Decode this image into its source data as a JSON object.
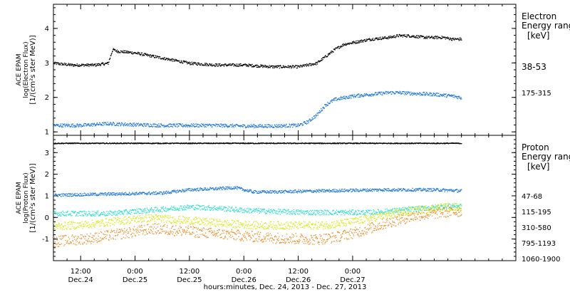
{
  "chart_data": [
    {
      "type": "scatter",
      "panel": "electron",
      "ylabel_lines": [
        "ACE EPAM",
        "log(Electron Flux)",
        "[1/(cm²s ster MeV)]"
      ],
      "ylim": [
        0.9,
        4.7
      ],
      "yticks": [
        1,
        2,
        3,
        4
      ],
      "legend_title": [
        "Electron",
        "Energy ranges",
        "[keV]"
      ],
      "series": [
        {
          "name": "38-53",
          "color": "#000000",
          "x": [
            0,
            4,
            9,
            12,
            13,
            14,
            18,
            24,
            30,
            36,
            42,
            48,
            54,
            58,
            60,
            62,
            64,
            66,
            70,
            74,
            76,
            78,
            82,
            86,
            88,
            90
          ],
          "values": [
            3.0,
            2.95,
            2.95,
            3.0,
            3.4,
            3.35,
            3.3,
            3.15,
            3.0,
            2.95,
            2.95,
            2.9,
            2.9,
            3.0,
            3.2,
            3.4,
            3.55,
            3.6,
            3.7,
            3.75,
            3.8,
            3.8,
            3.75,
            3.75,
            3.7,
            3.7
          ],
          "noise": 0.04
        },
        {
          "name": "175-315",
          "color": "#1f78d8",
          "x": [
            0,
            6,
            12,
            18,
            24,
            30,
            36,
            42,
            48,
            54,
            56,
            58,
            60,
            62,
            64,
            66,
            70,
            74,
            76,
            80,
            84,
            88,
            90
          ],
          "values": [
            1.2,
            1.2,
            1.25,
            1.22,
            1.2,
            1.2,
            1.2,
            1.18,
            1.18,
            1.2,
            1.3,
            1.5,
            1.8,
            1.95,
            2.0,
            2.05,
            2.1,
            2.15,
            2.15,
            2.12,
            2.1,
            2.05,
            2.0
          ],
          "noise": 0.05
        }
      ]
    },
    {
      "type": "scatter",
      "panel": "proton",
      "ylabel_lines": [
        "ACE EPAM",
        "log(Proton Flux)",
        "[1/(cm²s ster MeV)]"
      ],
      "ylim": [
        -2.0,
        3.8
      ],
      "yticks": [
        -1,
        0,
        1,
        2,
        3
      ],
      "legend_title": [
        "Proton",
        "Energy ranges",
        "[keV]"
      ],
      "series": [
        {
          "name": "47-68",
          "color": "#000000",
          "x": [
            0,
            90
          ],
          "values": [
            3.45,
            3.45
          ],
          "noise": 0.02
        },
        {
          "name": "115-195",
          "color": "#1f78d8",
          "x": [
            0,
            12,
            24,
            30,
            36,
            40,
            44,
            48,
            60,
            72,
            84,
            90
          ],
          "values": [
            1.05,
            1.1,
            1.15,
            1.3,
            1.35,
            1.4,
            1.2,
            1.2,
            1.25,
            1.3,
            1.3,
            1.25
          ],
          "noise": 0.07
        },
        {
          "name": "310-580",
          "color": "#30dcd0",
          "x": [
            0,
            12,
            24,
            30,
            36,
            42,
            48,
            56,
            62,
            70,
            76,
            82,
            88,
            90
          ],
          "values": [
            0.2,
            0.2,
            0.4,
            0.5,
            0.45,
            0.35,
            0.3,
            0.25,
            0.25,
            0.25,
            0.35,
            0.45,
            0.55,
            0.55
          ],
          "noise": 0.12
        },
        {
          "name": "795-1193",
          "color": "#d8e81a",
          "x": [
            0,
            8,
            16,
            22,
            28,
            34,
            40,
            46,
            52,
            58,
            62,
            68,
            74,
            80,
            86,
            90
          ],
          "values": [
            -0.4,
            -0.3,
            -0.1,
            0.0,
            -0.1,
            -0.2,
            -0.3,
            -0.35,
            -0.35,
            -0.35,
            -0.3,
            -0.1,
            0.15,
            0.35,
            0.5,
            0.5
          ],
          "noise": 0.18
        },
        {
          "name": "1060-1900",
          "color": "#e8902a",
          "x": [
            0,
            8,
            16,
            22,
            28,
            34,
            40,
            46,
            52,
            58,
            62,
            68,
            74,
            80,
            86,
            90
          ],
          "values": [
            -1.1,
            -0.95,
            -0.7,
            -0.5,
            -0.6,
            -0.7,
            -0.8,
            -0.9,
            -0.95,
            -1.0,
            -0.9,
            -0.6,
            -0.2,
            0.1,
            0.25,
            0.3
          ],
          "noise": 0.25
        }
      ]
    }
  ],
  "x_axis": {
    "xlim": [
      0,
      102
    ],
    "xlabel": "hours:minutes, Dec. 24, 2013 - Dec. 27, 2013",
    "ticks": [
      {
        "x": 6,
        "label": "12:00",
        "sub": "Dec.24"
      },
      {
        "x": 18,
        "label": "0:00",
        "sub": "Dec.25"
      },
      {
        "x": 30,
        "label": "12:00",
        "sub": "Dec.25"
      },
      {
        "x": 42,
        "label": "0:00",
        "sub": "Dec.26"
      },
      {
        "x": 54,
        "label": "12:00",
        "sub": "Dec.26"
      },
      {
        "x": 66,
        "label": "0:00",
        "sub": "Dec.27"
      }
    ]
  }
}
